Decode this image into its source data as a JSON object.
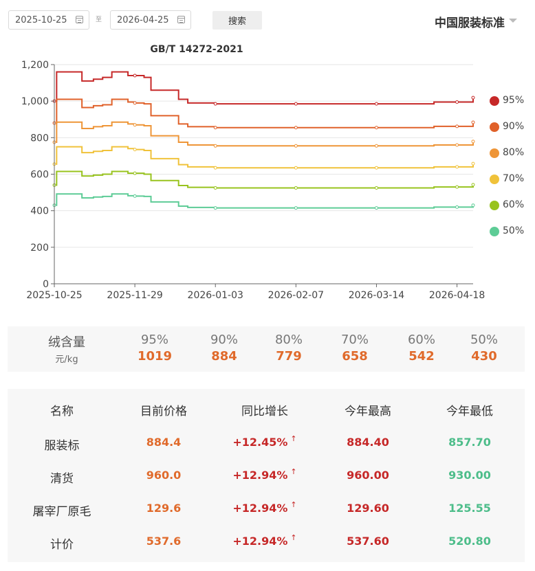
{
  "filter": {
    "start_date": "2025-10-25",
    "separator": "至",
    "end_date": "2026-04-25",
    "search_label": "搜索"
  },
  "brand": {
    "title": "中国服装标准"
  },
  "chart_data": {
    "type": "line",
    "title": "GB/T 14272-2021",
    "xlabel": "",
    "ylabel": "",
    "ylim": [
      0,
      1200
    ],
    "yticks": [
      0,
      200,
      400,
      600,
      800,
      "1,000",
      "1,200"
    ],
    "xticks": [
      "2025-10-25",
      "2025-11-29",
      "2026-01-03",
      "2026-02-07",
      "2026-03-14",
      "2026-04-18"
    ],
    "x": [
      "2025-10-25",
      "2025-10-26",
      "2025-11-03",
      "2025-11-06",
      "2025-11-11",
      "2025-11-15",
      "2025-11-19",
      "2025-11-26",
      "2025-11-29",
      "2025-12-03",
      "2025-12-06",
      "2025-12-14",
      "2025-12-18",
      "2025-12-22",
      "2025-12-26",
      "2026-01-03",
      "2026-02-07",
      "2026-03-14",
      "2026-04-08",
      "2026-04-18",
      "2026-04-25"
    ],
    "legend_position": "right",
    "series": [
      {
        "name": "95%",
        "color": "#c62828",
        "values": [
          1000,
          1160,
          1160,
          1110,
          1120,
          1130,
          1160,
          1140,
          1140,
          1130,
          1060,
          1060,
          1010,
          990,
          990,
          985,
          985,
          985,
          995,
          995,
          1019
        ]
      },
      {
        "name": "90%",
        "color": "#e0612a",
        "values": [
          880,
          1010,
          1010,
          965,
          975,
          980,
          1010,
          995,
          990,
          985,
          920,
          920,
          875,
          860,
          860,
          855,
          855,
          855,
          862,
          862,
          884
        ]
      },
      {
        "name": "80%",
        "color": "#ee9537",
        "values": [
          775,
          885,
          885,
          850,
          860,
          865,
          885,
          875,
          870,
          865,
          810,
          810,
          775,
          760,
          760,
          755,
          755,
          755,
          760,
          760,
          779
        ]
      },
      {
        "name": "70%",
        "color": "#f0c23a",
        "values": [
          655,
          750,
          750,
          718,
          725,
          730,
          750,
          740,
          735,
          730,
          685,
          685,
          652,
          640,
          640,
          635,
          635,
          635,
          640,
          640,
          658
        ]
      },
      {
        "name": "60%",
        "color": "#98c31e",
        "values": [
          540,
          615,
          615,
          590,
          595,
          600,
          615,
          605,
          605,
          600,
          565,
          565,
          538,
          528,
          528,
          525,
          525,
          525,
          530,
          530,
          542
        ]
      },
      {
        "name": "50%",
        "color": "#5dcc96",
        "values": [
          430,
          492,
          492,
          470,
          475,
          478,
          492,
          482,
          480,
          478,
          448,
          448,
          425,
          418,
          418,
          415,
          415,
          415,
          420,
          420,
          430
        ]
      }
    ]
  },
  "down_prices": {
    "label": "绒含量",
    "unit": "元/kg",
    "items": [
      {
        "pct": "95%",
        "value": "1019"
      },
      {
        "pct": "90%",
        "value": "884"
      },
      {
        "pct": "80%",
        "value": "779"
      },
      {
        "pct": "70%",
        "value": "658"
      },
      {
        "pct": "60%",
        "value": "542"
      },
      {
        "pct": "50%",
        "value": "430"
      }
    ]
  },
  "table": {
    "headers": [
      "名称",
      "目前价格",
      "同比增长",
      "今年最高",
      "今年最低"
    ],
    "up_arrow": "↑",
    "rows": [
      {
        "name": "服装标",
        "current": "884.4",
        "yoy": "+12.45%",
        "high": "884.40",
        "low": "857.70"
      },
      {
        "name": "清货",
        "current": "960.0",
        "yoy": "+12.94%",
        "high": "960.00",
        "low": "930.00"
      },
      {
        "name": "屠宰厂原毛",
        "current": "129.6",
        "yoy": "+12.94%",
        "high": "129.60",
        "low": "125.55"
      },
      {
        "name": "计价",
        "current": "537.6",
        "yoy": "+12.94%",
        "high": "537.60",
        "low": "520.80"
      }
    ]
  }
}
